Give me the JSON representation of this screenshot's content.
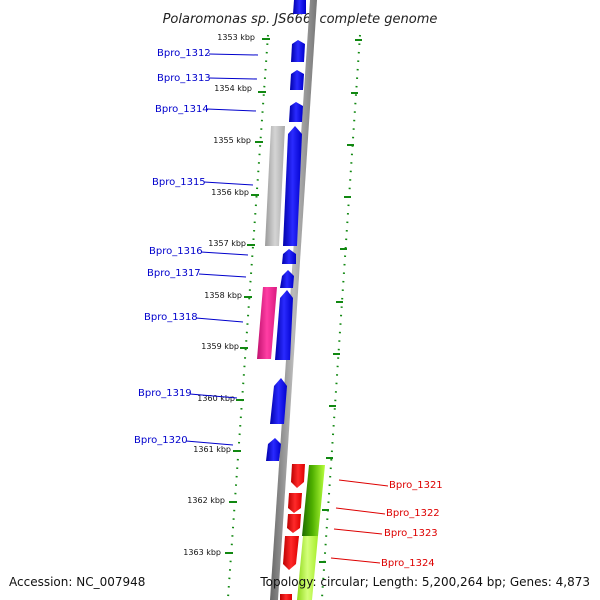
{
  "title": "Polaromonas sp. JS666, complete genome",
  "footer": {
    "accession": "Accession: NC_007948",
    "summary": "Topology: circular; Length: 5,200,264 bp; Genes: 4,873"
  },
  "colors": {
    "background": "#ffffff",
    "forward_cds": "#0000ee",
    "other_cds": "#ff0000",
    "gray_feature": "#b5b5b5",
    "pink_feature": "#ee1f8c",
    "green_feature": "#7fd000",
    "dark_green_feature": "#2e8b00",
    "lime_feature": "#b7ff3c",
    "backbone": "#888888",
    "blue_label": "#0000cc",
    "red_label": "#dd0000",
    "tick_green": "#118811"
  },
  "position_markers": [
    "1353 kbp",
    "1354 kbp",
    "1355 kbp",
    "1356 kbp",
    "1357 kbp",
    "1358 kbp",
    "1359 kbp",
    "1360 kbp",
    "1361 kbp",
    "1362 kbp",
    "1363 kbp"
  ],
  "genes_forward": [
    "Bpro_1312",
    "Bpro_1313",
    "Bpro_1314",
    "Bpro_1315",
    "Bpro_1316",
    "Bpro_1317",
    "Bpro_1318",
    "Bpro_1319",
    "Bpro_1320"
  ],
  "genes_reverse": [
    "Bpro_1321",
    "Bpro_1322",
    "Bpro_1323",
    "Bpro_1324"
  ]
}
